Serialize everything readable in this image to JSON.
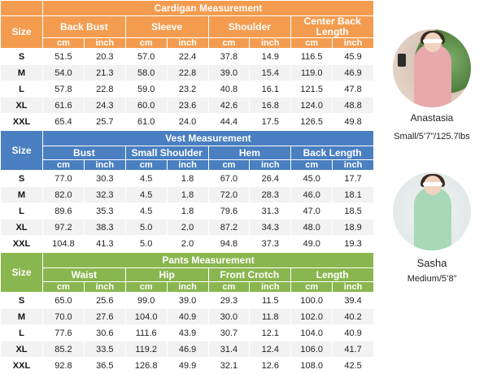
{
  "size_label": "Size",
  "unit_cm": "cm",
  "unit_inch": "inch",
  "sizes": [
    "S",
    "M",
    "L",
    "XL",
    "XXL"
  ],
  "sections": [
    {
      "title": "Cardigan Measurement",
      "headers": [
        "Back Bust",
        "Sleeve",
        "Shoulder",
        "Center Back Length"
      ],
      "rows": [
        [
          "51.5",
          "20.3",
          "57.0",
          "22.4",
          "37.8",
          "14.9",
          "116.5",
          "45.9"
        ],
        [
          "54.0",
          "21.3",
          "58.0",
          "22.8",
          "39.0",
          "15.4",
          "119.0",
          "46.9"
        ],
        [
          "57.8",
          "22.8",
          "59.0",
          "23.2",
          "40.8",
          "16.1",
          "121.5",
          "47.8"
        ],
        [
          "61.6",
          "24.3",
          "60.0",
          "23.6",
          "42.6",
          "16.8",
          "124.0",
          "48.8"
        ],
        [
          "65.4",
          "25.7",
          "61.0",
          "24.0",
          "44.4",
          "17.5",
          "126.5",
          "49.8"
        ]
      ]
    },
    {
      "title": "Vest Measurement",
      "headers": [
        "Bust",
        "Small Shoulder",
        "Hem",
        "Back Length"
      ],
      "rows": [
        [
          "77.0",
          "30.3",
          "4.5",
          "1.8",
          "67.0",
          "26.4",
          "45.0",
          "17.7"
        ],
        [
          "82.0",
          "32.3",
          "4.5",
          "1.8",
          "72.0",
          "28.3",
          "46.0",
          "18.1"
        ],
        [
          "89.6",
          "35.3",
          "4.5",
          "1.8",
          "79.6",
          "31.3",
          "47.0",
          "18.5"
        ],
        [
          "97.2",
          "38.3",
          "5.0",
          "2.0",
          "87.2",
          "34.3",
          "48.0",
          "18.9"
        ],
        [
          "104.8",
          "41.3",
          "5.0",
          "2.0",
          "94.8",
          "37.3",
          "49.0",
          "19.3"
        ]
      ]
    },
    {
      "title": "Pants Measurement",
      "headers": [
        "Waist",
        "Hip",
        "Front Crotch",
        "Length"
      ],
      "rows": [
        [
          "65.0",
          "25.6",
          "99.0",
          "39.0",
          "29.3",
          "11.5",
          "100.0",
          "39.4"
        ],
        [
          "70.0",
          "27.6",
          "104.0",
          "40.9",
          "30.0",
          "11.8",
          "102.0",
          "40.2"
        ],
        [
          "77.6",
          "30.6",
          "111.6",
          "43.9",
          "30.7",
          "12.1",
          "104.0",
          "40.9"
        ],
        [
          "85.2",
          "33.5",
          "119.2",
          "46.9",
          "31.4",
          "12.4",
          "106.0",
          "41.7"
        ],
        [
          "92.8",
          "36.5",
          "126.8",
          "49.9",
          "32.1",
          "12.6",
          "108.0",
          "42.5"
        ]
      ]
    }
  ],
  "models": [
    {
      "name": "Anastasia",
      "stats": "Small/5’7”/125.7lbs"
    },
    {
      "name": "Sasha",
      "stats": "Medium/5’8”"
    }
  ]
}
